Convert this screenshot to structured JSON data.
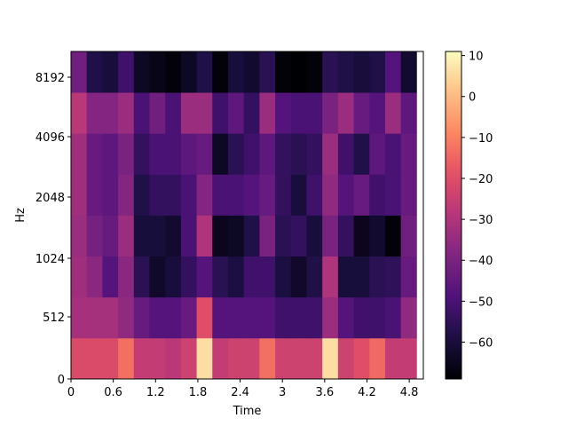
{
  "chart_data": {
    "type": "heatmap",
    "title": "",
    "xlabel": "Time",
    "ylabel": "Hz",
    "x_ticks": [
      {
        "value": 0,
        "label": "0"
      },
      {
        "value": 0.6,
        "label": "0.6"
      },
      {
        "value": 1.2,
        "label": "1.2"
      },
      {
        "value": 1.8,
        "label": "1.8"
      },
      {
        "value": 2.4,
        "label": "2.4"
      },
      {
        "value": 3.0,
        "label": "3"
      },
      {
        "value": 3.6,
        "label": "3.6"
      },
      {
        "value": 4.2,
        "label": "4.2"
      },
      {
        "value": 4.8,
        "label": "4.8"
      }
    ],
    "xlim": [
      0,
      5.0
    ],
    "y_scale": "mel",
    "y_ticks": [
      {
        "index": 0,
        "label": "0"
      },
      {
        "index": 1,
        "label": "512"
      },
      {
        "index": 2,
        "label": "1024"
      },
      {
        "index": 3,
        "label": "2048"
      },
      {
        "index": 4,
        "label": "4096"
      },
      {
        "index": 5,
        "label": "8192"
      }
    ],
    "n_frames": 22,
    "frame_duration": 0.2229,
    "n_mel_bands": 8,
    "colormap": "magma",
    "vmin": -69,
    "vmax": 11,
    "colorbar_ticks": [
      10,
      0,
      -10,
      -20,
      -30,
      -40,
      -50,
      -60
    ],
    "values_bottom_to_top": [
      [
        -21,
        -21,
        -21,
        -13,
        -26,
        -26,
        -28,
        -24,
        6,
        -26,
        -24,
        -24,
        -13,
        -24,
        -24,
        -24,
        6,
        -24,
        -20,
        -14,
        -26,
        -26
      ],
      [
        -32,
        -32,
        -32,
        -36,
        -44,
        -48,
        -48,
        -44,
        -20,
        -48,
        -48,
        -48,
        -48,
        -52,
        -52,
        -52,
        -34,
        -48,
        -52,
        -52,
        -50,
        -36
      ],
      [
        -33,
        -37,
        -48,
        -37,
        -56,
        -63,
        -60,
        -54,
        -48,
        -56,
        -59,
        -52,
        -52,
        -59,
        -63,
        -58,
        -30,
        -60,
        -60,
        -56,
        -55,
        -44
      ],
      [
        -34,
        -41,
        -44,
        -34,
        -60,
        -60,
        -62,
        -50,
        -30,
        -65,
        -64,
        -58,
        -40,
        -56,
        -54,
        -60,
        -40,
        -54,
        -65,
        -62,
        -68,
        -42
      ],
      [
        -33,
        -44,
        -46,
        -38,
        -58,
        -54,
        -54,
        -50,
        -38,
        -50,
        -50,
        -48,
        -44,
        -54,
        -60,
        -52,
        -36,
        -48,
        -44,
        -52,
        -50,
        -44
      ],
      [
        -33,
        -44,
        -46,
        -40,
        -54,
        -50,
        -50,
        -46,
        -44,
        -64,
        -56,
        -52,
        -46,
        -54,
        -56,
        -54,
        -34,
        -52,
        -58,
        -46,
        -50,
        -44
      ],
      [
        -28,
        -38,
        -38,
        -34,
        -50,
        -42,
        -50,
        -34,
        -34,
        -52,
        -46,
        -54,
        -34,
        -48,
        -50,
        -50,
        -40,
        -34,
        -44,
        -48,
        -34,
        -46
      ],
      [
        -42,
        -58,
        -60,
        -52,
        -64,
        -66,
        -68,
        -64,
        -58,
        -68,
        -60,
        -62,
        -56,
        -68,
        -69,
        -68,
        -56,
        -58,
        -60,
        -58,
        -48,
        -62
      ]
    ]
  }
}
